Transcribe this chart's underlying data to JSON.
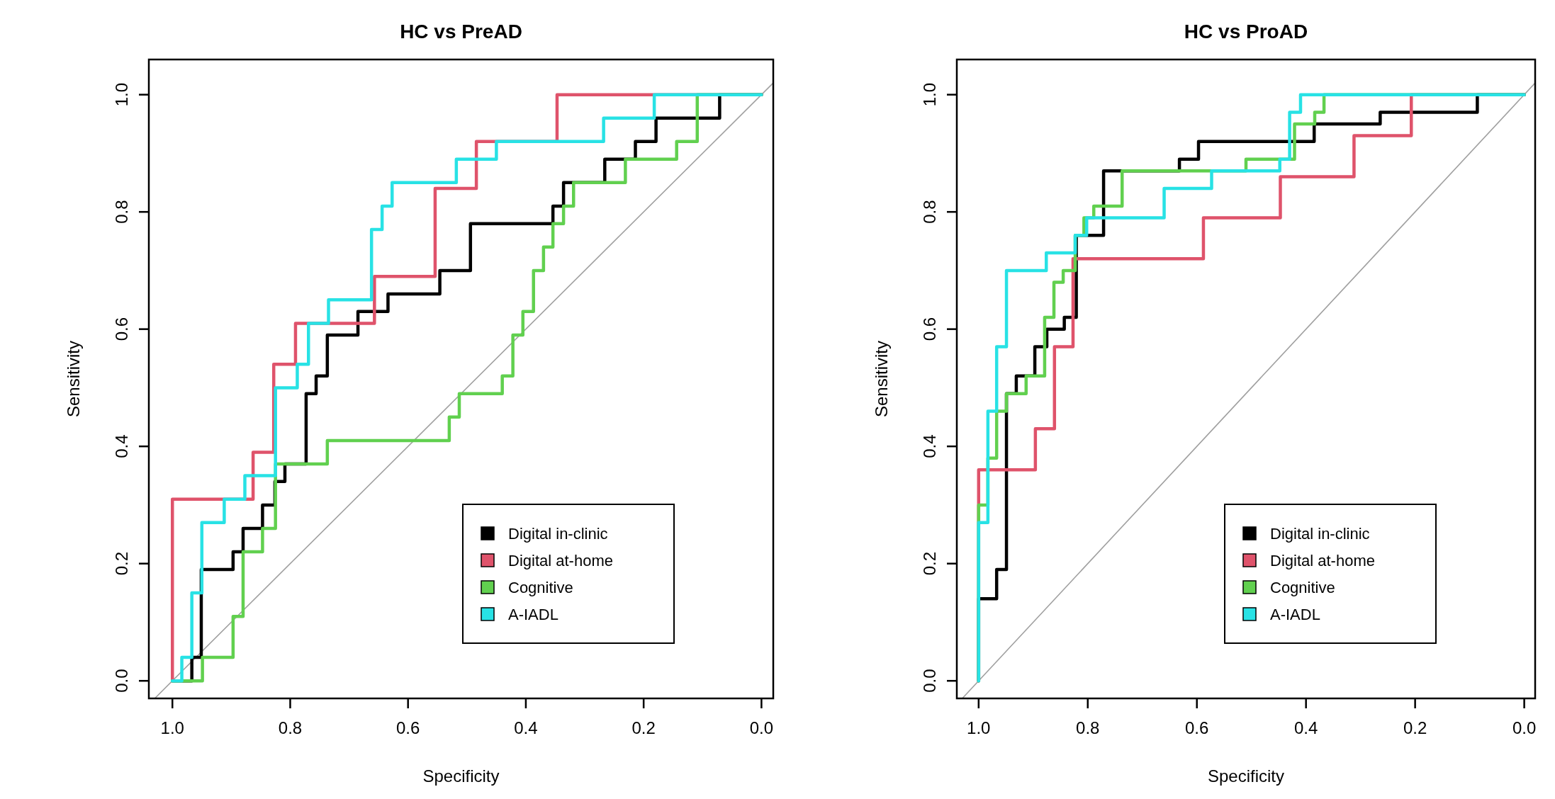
{
  "chart_data": [
    {
      "type": "line",
      "title": "HC vs PreAD",
      "xlabel": "Specificity",
      "ylabel": "Sensitivity",
      "xlim": [
        1.04,
        -0.02
      ],
      "ylim": [
        -0.03,
        1.06
      ],
      "xticks": [
        {
          "value": 1,
          "label": "1.0"
        },
        {
          "value": 0.8,
          "label": "0.8"
        },
        {
          "value": 0.6,
          "label": "0.6"
        },
        {
          "value": 0.4,
          "label": "0.4"
        },
        {
          "value": 0.2,
          "label": "0.2"
        },
        {
          "value": 0,
          "label": "0.0"
        }
      ],
      "yticks": [
        {
          "value": 0,
          "label": "0.0"
        },
        {
          "value": 0.2,
          "label": "0.2"
        },
        {
          "value": 0.4,
          "label": "0.4"
        },
        {
          "value": 0.6,
          "label": "0.6"
        },
        {
          "value": 0.8,
          "label": "0.8"
        },
        {
          "value": 1,
          "label": "1.0"
        }
      ],
      "legend": "bottom right",
      "series": [
        {
          "type": "line",
          "color": "#a0a0a0",
          "x": [
            1.03,
            -0.02
          ],
          "values": [
            -0.03,
            1.02
          ]
        },
        {
          "name": "Digital in-clinic",
          "color": "#000000",
          "x": [
            1,
            0.967,
            0.967,
            0.951,
            0.951,
            0.897,
            0.897,
            0.88,
            0.88,
            0.847,
            0.847,
            0.826,
            0.826,
            0.809,
            0.809,
            0.773,
            0.773,
            0.756,
            0.756,
            0.737,
            0.737,
            0.685,
            0.685,
            0.634,
            0.634,
            0.546,
            0.546,
            0.494,
            0.494,
            0.354,
            0.354,
            0.336,
            0.336,
            0.266,
            0.266,
            0.214,
            0.214,
            0.179,
            0.179,
            0.071,
            0.071,
            0
          ],
          "values": [
            0,
            0,
            0.04,
            0.04,
            0.19,
            0.19,
            0.22,
            0.22,
            0.26,
            0.26,
            0.3,
            0.3,
            0.34,
            0.34,
            0.37,
            0.37,
            0.49,
            0.49,
            0.52,
            0.52,
            0.59,
            0.59,
            0.63,
            0.63,
            0.66,
            0.66,
            0.7,
            0.7,
            0.78,
            0.78,
            0.81,
            0.81,
            0.85,
            0.85,
            0.89,
            0.89,
            0.92,
            0.92,
            0.96,
            0.96,
            1,
            1
          ]
        },
        {
          "name": "Digital at-home",
          "color": "#df536b",
          "x": [
            1,
            1,
            0.863,
            0.863,
            0.828,
            0.828,
            0.791,
            0.791,
            0.657,
            0.657,
            0.554,
            0.554,
            0.484,
            0.484,
            0.347,
            0.347,
            0
          ],
          "values": [
            0,
            0.31,
            0.31,
            0.39,
            0.39,
            0.54,
            0.54,
            0.61,
            0.61,
            0.69,
            0.69,
            0.84,
            0.84,
            0.92,
            0.92,
            1,
            1
          ]
        },
        {
          "name": "Cognitive",
          "color": "#61d04f",
          "x": [
            1,
            0.949,
            0.949,
            0.897,
            0.897,
            0.88,
            0.88,
            0.847,
            0.847,
            0.825,
            0.825,
            0.737,
            0.737,
            0.53,
            0.53,
            0.513,
            0.513,
            0.44,
            0.44,
            0.422,
            0.422,
            0.405,
            0.405,
            0.387,
            0.387,
            0.37,
            0.37,
            0.354,
            0.354,
            0.336,
            0.336,
            0.319,
            0.319,
            0.231,
            0.231,
            0.144,
            0.144,
            0.109,
            0.109,
            0
          ],
          "values": [
            0,
            0,
            0.04,
            0.04,
            0.11,
            0.11,
            0.22,
            0.22,
            0.26,
            0.26,
            0.37,
            0.37,
            0.41,
            0.41,
            0.45,
            0.45,
            0.49,
            0.49,
            0.52,
            0.52,
            0.59,
            0.59,
            0.63,
            0.63,
            0.7,
            0.7,
            0.74,
            0.74,
            0.78,
            0.78,
            0.81,
            0.81,
            0.85,
            0.85,
            0.89,
            0.89,
            0.92,
            0.92,
            1,
            1
          ]
        },
        {
          "name": "A-IADL",
          "color": "#28e2e5",
          "x": [
            1,
            0.984,
            0.984,
            0.967,
            0.967,
            0.95,
            0.95,
            0.912,
            0.912,
            0.877,
            0.877,
            0.825,
            0.825,
            0.788,
            0.788,
            0.769,
            0.769,
            0.735,
            0.735,
            0.662,
            0.662,
            0.644,
            0.644,
            0.627,
            0.627,
            0.518,
            0.518,
            0.45,
            0.45,
            0.268,
            0.268,
            0.182,
            0.182,
            0
          ],
          "values": [
            0,
            0,
            0.04,
            0.04,
            0.15,
            0.15,
            0.27,
            0.27,
            0.31,
            0.31,
            0.35,
            0.35,
            0.5,
            0.5,
            0.54,
            0.54,
            0.61,
            0.61,
            0.65,
            0.65,
            0.77,
            0.77,
            0.81,
            0.81,
            0.85,
            0.85,
            0.89,
            0.89,
            0.92,
            0.92,
            0.96,
            0.96,
            1,
            1
          ]
        }
      ]
    },
    {
      "type": "line",
      "title": "HC vs ProAD",
      "xlabel": "Specificity",
      "ylabel": "Sensitivity",
      "xlim": [
        1.04,
        -0.02
      ],
      "ylim": [
        -0.03,
        1.06
      ],
      "xticks": [
        {
          "value": 1,
          "label": "1.0"
        },
        {
          "value": 0.8,
          "label": "0.8"
        },
        {
          "value": 0.6,
          "label": "0.6"
        },
        {
          "value": 0.4,
          "label": "0.4"
        },
        {
          "value": 0.2,
          "label": "0.2"
        },
        {
          "value": 0,
          "label": "0.0"
        }
      ],
      "yticks": [
        {
          "value": 0,
          "label": "0.0"
        },
        {
          "value": 0.2,
          "label": "0.2"
        },
        {
          "value": 0.4,
          "label": "0.4"
        },
        {
          "value": 0.6,
          "label": "0.6"
        },
        {
          "value": 0.8,
          "label": "0.8"
        },
        {
          "value": 1,
          "label": "1.0"
        }
      ],
      "legend": "bottom right",
      "series": [
        {
          "type": "line",
          "color": "#a0a0a0",
          "x": [
            1.03,
            -0.02
          ],
          "values": [
            -0.03,
            1.02
          ]
        },
        {
          "name": "Digital in-clinic",
          "color": "#000000",
          "x": [
            1,
            1,
            0.967,
            0.967,
            0.949,
            0.949,
            0.931,
            0.931,
            0.897,
            0.897,
            0.875,
            0.875,
            0.843,
            0.843,
            0.821,
            0.821,
            0.771,
            0.771,
            0.632,
            0.632,
            0.597,
            0.597,
            0.385,
            0.385,
            0.264,
            0.264,
            0.086,
            0.086,
            0
          ],
          "values": [
            0,
            0.14,
            0.14,
            0.19,
            0.19,
            0.49,
            0.49,
            0.52,
            0.52,
            0.57,
            0.57,
            0.6,
            0.6,
            0.62,
            0.62,
            0.76,
            0.76,
            0.87,
            0.87,
            0.89,
            0.89,
            0.92,
            0.92,
            0.95,
            0.95,
            0.97,
            0.97,
            1,
            1
          ]
        },
        {
          "name": "Digital at-home",
          "color": "#df536b",
          "x": [
            1,
            1,
            0.896,
            0.896,
            0.861,
            0.861,
            0.827,
            0.827,
            0.588,
            0.588,
            0.447,
            0.447,
            0.312,
            0.312,
            0.207,
            0.207,
            0
          ],
          "values": [
            0,
            0.36,
            0.36,
            0.43,
            0.43,
            0.57,
            0.57,
            0.72,
            0.72,
            0.79,
            0.79,
            0.86,
            0.86,
            0.93,
            0.93,
            1,
            1
          ]
        },
        {
          "name": "Cognitive",
          "color": "#61d04f",
          "x": [
            1,
            1,
            0.983,
            0.983,
            0.967,
            0.967,
            0.949,
            0.949,
            0.913,
            0.913,
            0.879,
            0.879,
            0.862,
            0.862,
            0.845,
            0.845,
            0.823,
            0.823,
            0.807,
            0.807,
            0.789,
            0.789,
            0.737,
            0.737,
            0.51,
            0.51,
            0.421,
            0.421,
            0.384,
            0.384,
            0.367,
            0.367,
            0
          ],
          "values": [
            0,
            0.3,
            0.3,
            0.38,
            0.38,
            0.46,
            0.46,
            0.49,
            0.49,
            0.52,
            0.52,
            0.62,
            0.62,
            0.68,
            0.68,
            0.7,
            0.7,
            0.76,
            0.76,
            0.79,
            0.79,
            0.81,
            0.81,
            0.87,
            0.87,
            0.89,
            0.89,
            0.95,
            0.95,
            0.97,
            0.97,
            1,
            1
          ]
        },
        {
          "name": "A-IADL",
          "color": "#28e2e5",
          "x": [
            1,
            1,
            0.983,
            0.983,
            0.967,
            0.967,
            0.949,
            0.949,
            0.876,
            0.876,
            0.823,
            0.823,
            0.802,
            0.802,
            0.66,
            0.66,
            0.573,
            0.573,
            0.448,
            0.448,
            0.43,
            0.43,
            0.41,
            0.41,
            0
          ],
          "values": [
            0,
            0.27,
            0.27,
            0.46,
            0.46,
            0.57,
            0.57,
            0.7,
            0.7,
            0.73,
            0.73,
            0.76,
            0.76,
            0.79,
            0.79,
            0.84,
            0.84,
            0.87,
            0.87,
            0.89,
            0.89,
            0.97,
            0.97,
            1,
            1
          ]
        }
      ]
    }
  ]
}
